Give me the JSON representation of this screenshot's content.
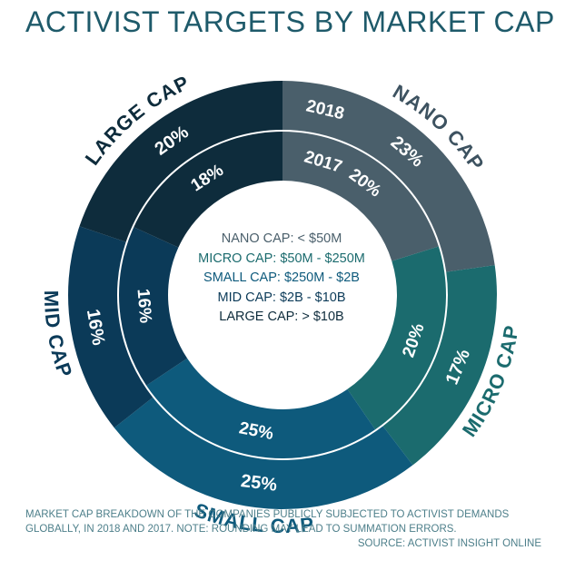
{
  "chart_data": {
    "type": "donut",
    "title": "ACTIVIST TARGETS BY MARKET CAP",
    "rings": [
      {
        "name": "2018",
        "position": "outer",
        "values": [
          23,
          17,
          25,
          16,
          20
        ]
      },
      {
        "name": "2017",
        "position": "inner",
        "values": [
          20,
          20,
          25,
          16,
          18
        ]
      }
    ],
    "categories": [
      "NANO CAP",
      "MICRO CAP",
      "SMALL CAP",
      "MID CAP",
      "LARGE CAP"
    ],
    "colors": [
      "#4a5f6b",
      "#1b6b6e",
      "#0e5a7c",
      "#0b3a58",
      "#0e2c3c"
    ],
    "value_labels_2018": [
      "23%",
      "17%",
      "25%",
      "16%",
      "20%"
    ],
    "value_labels_2017": [
      "20%",
      "20%",
      "25%",
      "16%",
      "18%"
    ],
    "legend": [
      {
        "text": "NANO CAP: < $50M",
        "color": "#4a5f6b"
      },
      {
        "text": "MICRO CAP: $50M - $250M",
        "color": "#1b6b6e"
      },
      {
        "text": "SMALL CAP: $250M - $2B",
        "color": "#0e5a7c"
      },
      {
        "text": "MID CAP: $2B - $10B",
        "color": "#0b3a58"
      },
      {
        "text": "LARGE CAP: > $10B",
        "color": "#0e2c3c"
      }
    ],
    "year_labels": [
      "2018",
      "2017"
    ],
    "note_line1": "MARKET CAP BREAKDOWN OF THE COMPANIES PUBLICLY SUBJECTED TO ACTIVIST DEMANDS",
    "note_line2": "GLOBALLY, IN 2018 AND 2017. NOTE: ROUNDING MAY LEAD TO SUMMATION ERRORS.",
    "source": "SOURCE: ACTIVIST INSIGHT ONLINE"
  }
}
